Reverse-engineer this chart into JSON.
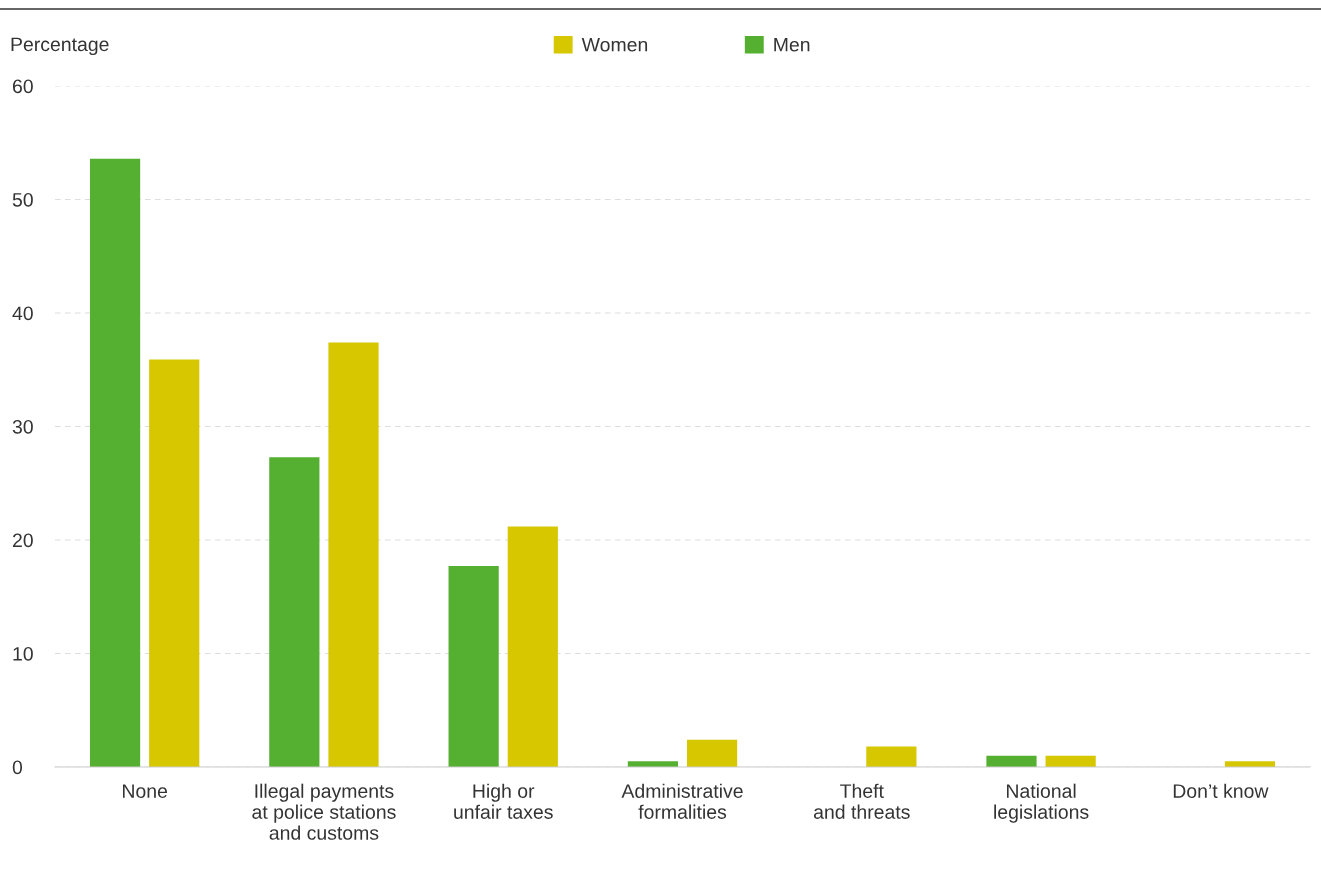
{
  "chart_data": {
    "type": "bar",
    "ylabel": "Percentage",
    "categories": [
      "None",
      "Illegal payments\nat police stations\nand customs",
      "High or\nunfair taxes",
      "Administrative\nformalities",
      "Theft\nand threats",
      "National\nlegislations",
      "Don’t know"
    ],
    "series": [
      {
        "name": "Men",
        "color": "#55af31",
        "values": [
          53.6,
          27.3,
          17.7,
          0.5,
          0,
          1.0,
          0
        ]
      },
      {
        "name": "Women",
        "color": "#d7c700",
        "values": [
          35.9,
          37.4,
          21.2,
          2.4,
          1.8,
          1.0,
          0.5
        ]
      }
    ],
    "ylim": [
      0,
      60
    ],
    "yticks": [
      0,
      10,
      20,
      30,
      40,
      50,
      60
    ],
    "grid": "y",
    "legend": "top"
  }
}
